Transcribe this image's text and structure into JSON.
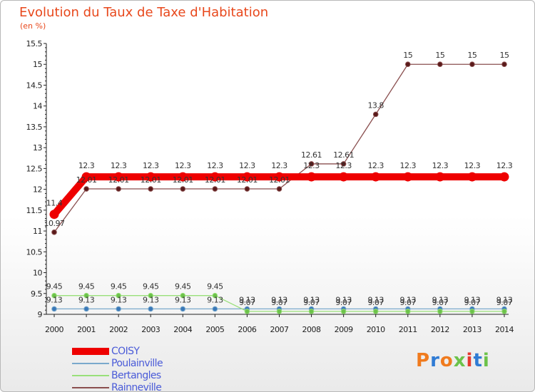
{
  "header": {
    "title": "Evolution du Taux de Taxe d'Habitation",
    "unit": "(en %)"
  },
  "logo": {
    "text": "Proxiti",
    "colors": [
      "#f07b1e",
      "#2f7bd4",
      "#f07b1e",
      "#6cc24a",
      "#e53a2f",
      "#2f7bd4",
      "#6cc24a"
    ]
  },
  "chart_data": {
    "type": "line",
    "title": "Evolution du Taux de Taxe d'Habitation",
    "ylabel": "(en %)",
    "xlabel": "",
    "ylim": [
      9,
      15.5
    ],
    "yticks": [
      "9",
      "9.5",
      "10",
      "10.5",
      "11",
      "11.5",
      "12",
      "12.5",
      "13",
      "13.5",
      "14",
      "14.5",
      "15",
      "15.5"
    ],
    "categories": [
      "2000",
      "2001",
      "2002",
      "2003",
      "2004",
      "2005",
      "2006",
      "2007",
      "2008",
      "2009",
      "2010",
      "2011",
      "2012",
      "2013",
      "2014"
    ],
    "legend_position": "bottom-left",
    "series": [
      {
        "name": "COISY",
        "color": "#ee0000",
        "emphasis": true,
        "values": [
          11.4,
          12.3,
          12.3,
          12.3,
          12.3,
          12.3,
          12.3,
          12.3,
          12.3,
          12.3,
          12.3,
          12.3,
          12.3,
          12.3,
          12.3
        ],
        "labels": [
          "11.4",
          "12.3",
          "12.3",
          "12.3",
          "12.3",
          "12.3",
          "12.3",
          "12.3",
          "12.3",
          "12.3",
          "12.3",
          "12.3",
          "12.3",
          "12.3",
          "12.3"
        ]
      },
      {
        "name": "Poulainville",
        "color": "#7aa9cc",
        "marker": "#3a78b8",
        "values": [
          9.13,
          9.13,
          9.13,
          9.13,
          9.13,
          9.13,
          9.13,
          9.13,
          9.13,
          9.13,
          9.13,
          9.13,
          9.13,
          9.13,
          9.13
        ],
        "labels": [
          "9.13",
          "9.13",
          "9.13",
          "9.13",
          "9.13",
          "9.13",
          "9.13",
          "9.13",
          "9.13",
          "9.13",
          "9.13",
          "9.13",
          "9.13",
          "9.13",
          "9.13"
        ]
      },
      {
        "name": "Bertangles",
        "color": "#99e07a",
        "marker": "#6cc24a",
        "values": [
          9.45,
          9.45,
          9.45,
          9.45,
          9.45,
          9.45,
          9.07,
          9.07,
          9.07,
          9.07,
          9.07,
          9.07,
          9.07,
          9.07,
          9.07
        ],
        "labels": [
          "9.45",
          "9.45",
          "9.45",
          "9.45",
          "9.45",
          "9.45",
          "9.07",
          "9.07",
          "9.07",
          "9.07",
          "9.07",
          "9.07",
          "9.07",
          "9.07",
          "9.07"
        ]
      },
      {
        "name": "Rainneville",
        "color": "#8a4f4f",
        "marker": "#5a1a1a",
        "values": [
          10.97,
          12.01,
          12.01,
          12.01,
          12.01,
          12.01,
          12.01,
          12.01,
          12.61,
          12.61,
          13.8,
          15,
          15,
          15,
          15
        ],
        "labels": [
          "10.97",
          "12.01",
          "12.01",
          "12.01",
          "12.01",
          "12.01",
          "12.01",
          "12.01",
          "12.61",
          "12.61",
          "13.8",
          "15",
          "15",
          "15",
          "15"
        ]
      }
    ]
  }
}
